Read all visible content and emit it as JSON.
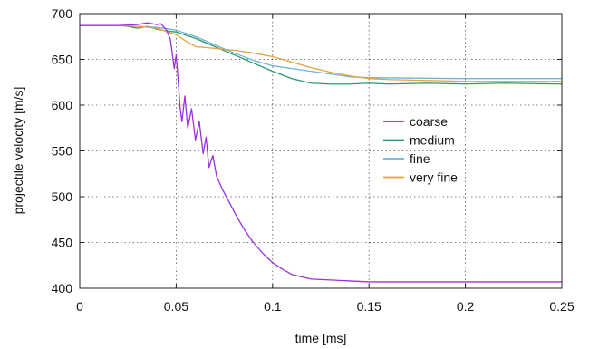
{
  "chart_data": {
    "type": "line",
    "xlabel": "time [ms]",
    "ylabel": "projectile velocity  [m/s]",
    "xlim": [
      0,
      0.25
    ],
    "ylim": [
      400,
      700
    ],
    "xticks": [
      0,
      0.05,
      0.1,
      0.15,
      0.2,
      0.25
    ],
    "yticks": [
      400,
      450,
      500,
      550,
      600,
      650,
      700
    ],
    "xtick_labels": [
      "0",
      "0.05",
      "0.1",
      "0.15",
      "0.2",
      "0.25"
    ],
    "ytick_labels": [
      "400",
      "450",
      "500",
      "550",
      "600",
      "650",
      "700"
    ],
    "grid": true,
    "legend_position": "center-right",
    "series": [
      {
        "name": "coarse",
        "color": "#9b30e0",
        "points": [
          [
            0,
            687
          ],
          [
            0.02,
            687
          ],
          [
            0.03,
            688
          ],
          [
            0.035,
            690
          ],
          [
            0.04,
            688
          ],
          [
            0.042,
            689
          ],
          [
            0.045,
            682
          ],
          [
            0.047,
            672
          ],
          [
            0.0485,
            648
          ],
          [
            0.049,
            640
          ],
          [
            0.05,
            655
          ],
          [
            0.051,
            628
          ],
          [
            0.052,
            598
          ],
          [
            0.053,
            582
          ],
          [
            0.0545,
            610
          ],
          [
            0.056,
            575
          ],
          [
            0.058,
            596
          ],
          [
            0.06,
            562
          ],
          [
            0.062,
            582
          ],
          [
            0.064,
            547
          ],
          [
            0.0655,
            565
          ],
          [
            0.067,
            532
          ],
          [
            0.069,
            545
          ],
          [
            0.071,
            522
          ],
          [
            0.074,
            508
          ],
          [
            0.078,
            492
          ],
          [
            0.082,
            476
          ],
          [
            0.086,
            462
          ],
          [
            0.09,
            450
          ],
          [
            0.095,
            438
          ],
          [
            0.1,
            428
          ],
          [
            0.105,
            421
          ],
          [
            0.11,
            415
          ],
          [
            0.12,
            410
          ],
          [
            0.13,
            409
          ],
          [
            0.14,
            408
          ],
          [
            0.15,
            407
          ],
          [
            0.2,
            407
          ],
          [
            0.25,
            407
          ]
        ]
      },
      {
        "name": "medium",
        "color": "#2a9a70",
        "points": [
          [
            0,
            687
          ],
          [
            0.02,
            687
          ],
          [
            0.025,
            686
          ],
          [
            0.03,
            684
          ],
          [
            0.035,
            686
          ],
          [
            0.04,
            683
          ],
          [
            0.045,
            681
          ],
          [
            0.05,
            680
          ],
          [
            0.06,
            673
          ],
          [
            0.07,
            664
          ],
          [
            0.08,
            655
          ],
          [
            0.09,
            646
          ],
          [
            0.1,
            637
          ],
          [
            0.11,
            629
          ],
          [
            0.12,
            624
          ],
          [
            0.13,
            623
          ],
          [
            0.14,
            623
          ],
          [
            0.15,
            624
          ],
          [
            0.16,
            623
          ],
          [
            0.18,
            624
          ],
          [
            0.2,
            623
          ],
          [
            0.22,
            624
          ],
          [
            0.25,
            623
          ]
        ]
      },
      {
        "name": "fine",
        "color": "#6fb3d8",
        "points": [
          [
            0,
            687
          ],
          [
            0.02,
            687
          ],
          [
            0.03,
            686
          ],
          [
            0.04,
            685
          ],
          [
            0.05,
            682
          ],
          [
            0.06,
            675
          ],
          [
            0.07,
            666
          ],
          [
            0.08,
            657
          ],
          [
            0.09,
            649
          ],
          [
            0.1,
            643
          ],
          [
            0.11,
            640
          ],
          [
            0.12,
            637
          ],
          [
            0.13,
            634
          ],
          [
            0.14,
            631
          ],
          [
            0.15,
            630
          ],
          [
            0.2,
            629
          ],
          [
            0.25,
            629
          ]
        ]
      },
      {
        "name": "very fine",
        "color": "#e5a33a",
        "points": [
          [
            0,
            687
          ],
          [
            0.02,
            687
          ],
          [
            0.03,
            686
          ],
          [
            0.04,
            684
          ],
          [
            0.05,
            677
          ],
          [
            0.055,
            670
          ],
          [
            0.06,
            664
          ],
          [
            0.07,
            662
          ],
          [
            0.08,
            660
          ],
          [
            0.09,
            657
          ],
          [
            0.1,
            653
          ],
          [
            0.11,
            647
          ],
          [
            0.12,
            641
          ],
          [
            0.13,
            636
          ],
          [
            0.14,
            632
          ],
          [
            0.15,
            629
          ],
          [
            0.16,
            628
          ],
          [
            0.18,
            627
          ],
          [
            0.2,
            626
          ],
          [
            0.22,
            626
          ],
          [
            0.25,
            626
          ]
        ]
      }
    ]
  }
}
